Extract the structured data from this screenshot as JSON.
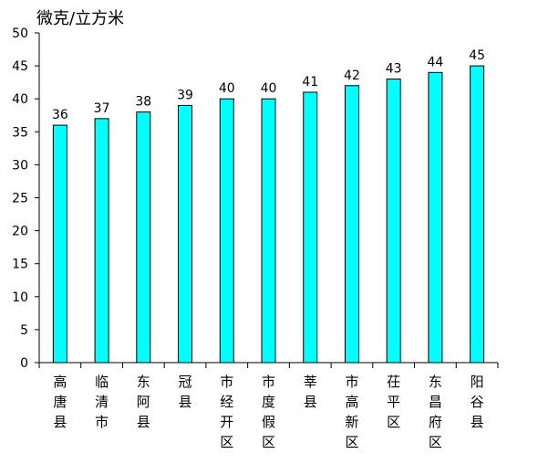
{
  "chart_data": {
    "type": "bar",
    "title": "",
    "ylabel": "微克/立方米",
    "xlabel": "",
    "ylim": [
      0,
      50
    ],
    "ytick_step": 5,
    "yticks": [
      "0",
      "5",
      "10",
      "15",
      "20",
      "25",
      "30",
      "35",
      "40",
      "45",
      "50"
    ],
    "grid": false,
    "legend": "none",
    "bar_color": "#00FFFF",
    "bar_edge_color": "#000000",
    "categories": [
      "高唐县",
      "临清市",
      "东阿县",
      "冠县",
      "市经开区",
      "市度假区",
      "莘县",
      "市高新区",
      "茌平区",
      "东昌府区",
      "阳谷县"
    ],
    "values": [
      36,
      37,
      38,
      39,
      40,
      40,
      41,
      42,
      43,
      44,
      45
    ],
    "data_labels": [
      "36",
      "37",
      "38",
      "39",
      "40",
      "40",
      "41",
      "42",
      "43",
      "44",
      "45"
    ]
  }
}
